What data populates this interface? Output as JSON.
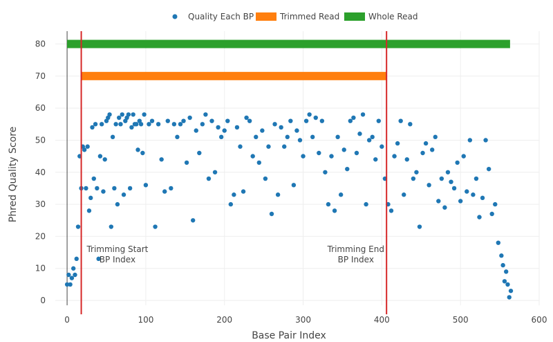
{
  "colors": {
    "quality": "#1f77b4",
    "trimmed": "#ff7f0e",
    "whole": "#2ca02c",
    "marker_line": "#d62728",
    "grid": "#eeeeee",
    "text": "#444444"
  },
  "chart_data": {
    "type": "scatter",
    "xlabel": "Base Pair Index",
    "ylabel": "Phred Quality Score",
    "xlim": [
      -15,
      600
    ],
    "ylim": [
      -1.5,
      84
    ],
    "xticks": [
      0,
      100,
      200,
      300,
      400,
      500,
      600
    ],
    "yticks": [
      0,
      10,
      20,
      30,
      40,
      50,
      60,
      70,
      80
    ],
    "grid": true,
    "legend_position": "top-center",
    "legend": [
      "Quality Each BP",
      "Trimmed Read",
      "Whole Read"
    ],
    "series": [
      {
        "name": "Quality Each BP",
        "type": "scatter",
        "x": [
          0,
          2,
          4,
          6,
          8,
          10,
          12,
          14,
          16,
          18,
          20,
          22,
          24,
          26,
          28,
          30,
          32,
          34,
          36,
          38,
          40,
          42,
          44,
          46,
          48,
          50,
          52,
          54,
          56,
          58,
          60,
          62,
          64,
          66,
          68,
          70,
          72,
          74,
          76,
          78,
          80,
          82,
          84,
          86,
          88,
          90,
          92,
          94,
          96,
          98,
          100,
          104,
          108,
          112,
          116,
          120,
          124,
          128,
          132,
          136,
          140,
          144,
          148,
          152,
          156,
          160,
          164,
          168,
          172,
          176,
          180,
          184,
          188,
          192,
          196,
          200,
          204,
          208,
          212,
          216,
          220,
          224,
          228,
          232,
          236,
          240,
          244,
          248,
          252,
          256,
          260,
          264,
          268,
          272,
          276,
          280,
          284,
          288,
          292,
          296,
          300,
          304,
          308,
          312,
          316,
          320,
          324,
          328,
          332,
          336,
          340,
          344,
          348,
          352,
          356,
          360,
          364,
          368,
          372,
          376,
          380,
          384,
          388,
          392,
          396,
          400,
          404,
          408,
          412,
          416,
          420,
          424,
          428,
          432,
          436,
          440,
          444,
          448,
          452,
          456,
          460,
          464,
          468,
          472,
          476,
          480,
          484,
          488,
          492,
          496,
          500,
          504,
          508,
          512,
          516,
          520,
          524,
          528,
          532,
          536,
          540,
          544,
          548,
          552,
          554,
          556,
          558,
          560,
          562,
          564
        ],
        "y": [
          5,
          8,
          5,
          7,
          10,
          8,
          13,
          23,
          45,
          35,
          48,
          47,
          35,
          48,
          28,
          32,
          54,
          38,
          55,
          35,
          13,
          45,
          55,
          34,
          44,
          56,
          57,
          58,
          23,
          51,
          35,
          55,
          30,
          57,
          55,
          58,
          33,
          56,
          57,
          58,
          35,
          54,
          58,
          55,
          55,
          47,
          56,
          55,
          46,
          58,
          36,
          55,
          56,
          23,
          55,
          44,
          34,
          56,
          35,
          55,
          51,
          55,
          56,
          43,
          57,
          25,
          53,
          46,
          55,
          58,
          38,
          56,
          40,
          54,
          51,
          53,
          56,
          30,
          33,
          54,
          48,
          34,
          57,
          56,
          45,
          51,
          43,
          53,
          38,
          48,
          27,
          55,
          33,
          54,
          48,
          51,
          56,
          36,
          53,
          50,
          45,
          56,
          58,
          51,
          57,
          46,
          56,
          40,
          30,
          45,
          28,
          51,
          33,
          47,
          41,
          56,
          57,
          46,
          52,
          58,
          30,
          50,
          51,
          44,
          56,
          48,
          38,
          30,
          28,
          45,
          49,
          56,
          33,
          44,
          55,
          38,
          40,
          23,
          46,
          49,
          36,
          47,
          51,
          31,
          38,
          29,
          40,
          37,
          35,
          43,
          31,
          45,
          34,
          50,
          33,
          38,
          26,
          32,
          50,
          41,
          27,
          30,
          18,
          14,
          11,
          6,
          9,
          5,
          1,
          3
        ]
      },
      {
        "name": "Trimmed Read",
        "type": "bar-horizontal",
        "x_range": [
          18,
          406
        ],
        "y": 70
      },
      {
        "name": "Whole Read",
        "type": "bar-horizontal",
        "x_range": [
          0,
          563
        ],
        "y": 80
      }
    ],
    "vertical_lines": [
      18,
      406
    ],
    "annotations": [
      {
        "lines": [
          "Trimming Start",
          "BP Index"
        ],
        "x": 64,
        "y": 16
      },
      {
        "lines": [
          "Trimming End",
          "BP Index"
        ],
        "x": 367,
        "y": 16
      }
    ]
  }
}
